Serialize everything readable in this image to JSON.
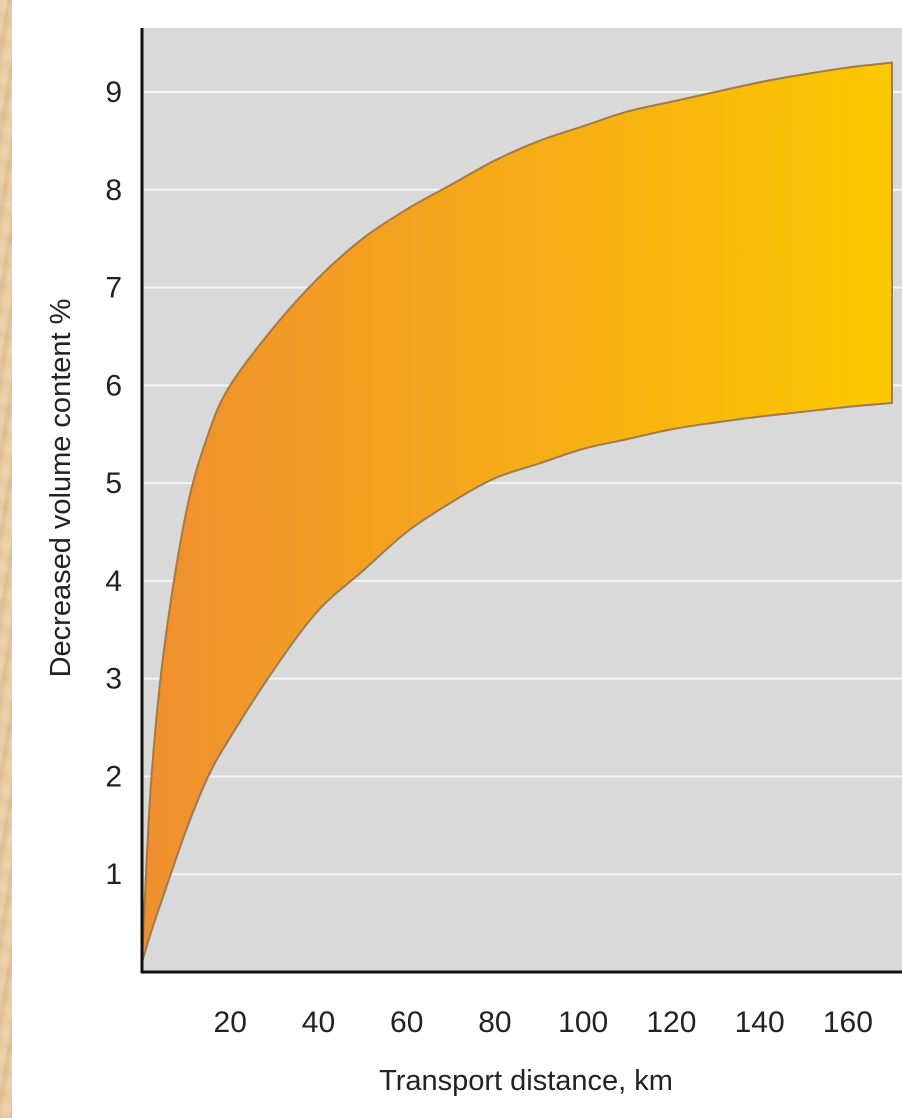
{
  "chart_data": {
    "type": "area",
    "title": "",
    "xlabel": "Transport distance, km",
    "ylabel": "Decreased volume content %",
    "xlim": [
      0,
      170
    ],
    "ylim": [
      0,
      9.9
    ],
    "x_ticks": [
      20,
      40,
      60,
      80,
      100,
      120,
      140,
      160
    ],
    "y_ticks": [
      1,
      2,
      3,
      4,
      5,
      6,
      7,
      8,
      9
    ],
    "grid": true,
    "legend": "none",
    "colors": {
      "band_start": "#ef8f2f",
      "band_end": "#fcc800",
      "band_edge": "#a07a4a",
      "plot_bg": "#d9d9d9",
      "grid": "#f4f4f4"
    },
    "band": {
      "upper": {
        "x": [
          0,
          2,
          5,
          10,
          15,
          20,
          30,
          40,
          50,
          60,
          70,
          80,
          90,
          100,
          110,
          120,
          130,
          140,
          150,
          160,
          170
        ],
        "y": [
          0.1,
          1.9,
          3.3,
          4.7,
          5.5,
          6.0,
          6.6,
          7.1,
          7.5,
          7.8,
          8.05,
          8.3,
          8.5,
          8.65,
          8.8,
          8.9,
          9.0,
          9.1,
          9.18,
          9.25,
          9.3
        ]
      },
      "lower": {
        "x": [
          0,
          2,
          5,
          10,
          15,
          20,
          30,
          40,
          50,
          60,
          70,
          80,
          90,
          100,
          110,
          120,
          130,
          140,
          150,
          160,
          170
        ],
        "y": [
          0.1,
          0.4,
          0.8,
          1.45,
          2.0,
          2.4,
          3.1,
          3.7,
          4.1,
          4.5,
          4.8,
          5.05,
          5.2,
          5.35,
          5.45,
          5.55,
          5.62,
          5.68,
          5.73,
          5.78,
          5.82
        ]
      }
    }
  }
}
